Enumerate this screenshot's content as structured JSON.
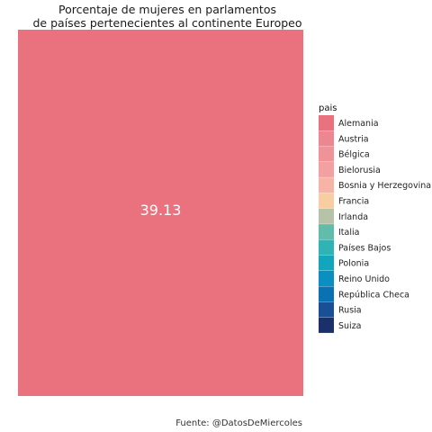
{
  "chart_data": {
    "type": "treemap",
    "title_lines": [
      "Porcentaje de mujeres en parlamentos",
      "de países pertenecientes al continente Europeo"
    ],
    "caption": "Fuente: @DatosDeMiercoles",
    "legend_title": "pais",
    "legend_position": "right",
    "tiles": [
      {
        "category": "Alemania",
        "value": 39.13,
        "label": "39.13"
      }
    ],
    "categories": [
      {
        "name": "Alemania",
        "color": "#E9727E"
      },
      {
        "name": "Austria",
        "color": "#EC8690"
      },
      {
        "name": "Bélgica",
        "color": "#EF9398"
      },
      {
        "name": "Bielorusia",
        "color": "#F3A0A0"
      },
      {
        "name": "Bosnia y Herzegovina",
        "color": "#F6B4A6"
      },
      {
        "name": "Francia",
        "color": "#F9CDA2"
      },
      {
        "name": "Irlanda",
        "color": "#B6C3A8"
      },
      {
        "name": "Italia",
        "color": "#62BCAC"
      },
      {
        "name": "Países Bajos",
        "color": "#2FB3B4"
      },
      {
        "name": "Polonia",
        "color": "#12A6BD"
      },
      {
        "name": "Reino Unido",
        "color": "#0B8EC2"
      },
      {
        "name": "República Checa",
        "color": "#0A72B2"
      },
      {
        "name": "Rusia",
        "color": "#184F95"
      },
      {
        "name": "Suiza",
        "color": "#1B2F6B"
      }
    ]
  }
}
